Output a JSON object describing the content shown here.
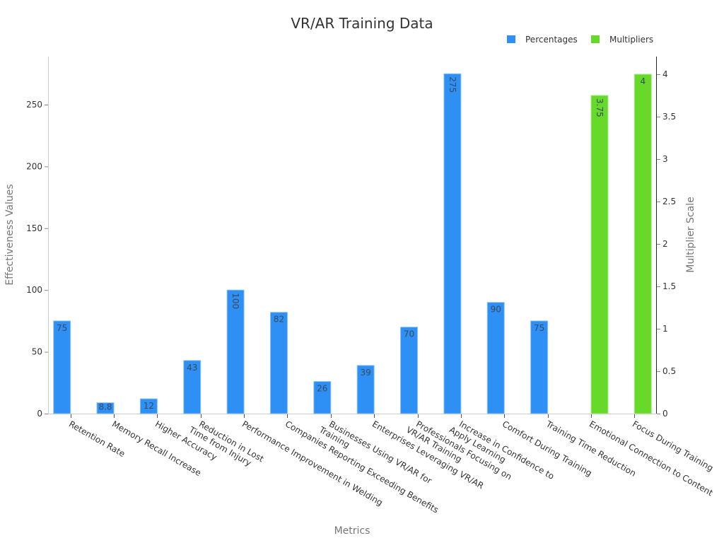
{
  "chart_data": {
    "type": "bar",
    "title": "VR/AR Training Data",
    "xlabel": "Metrics",
    "ylabel": "Effectiveness Values",
    "y2label": "Multiplier Scale",
    "ylim": [
      0,
      285
    ],
    "y2lim": [
      0,
      4.2
    ],
    "yticks": [
      0,
      50,
      100,
      150,
      200,
      250
    ],
    "y2ticks": [
      0,
      0.5,
      1,
      1.5,
      2,
      2.5,
      3,
      3.5,
      4
    ],
    "grid": false,
    "legend_position": "top-right",
    "categories": [
      [
        "Retention Rate"
      ],
      [
        "Memory Recall Increase"
      ],
      [
        "Higher Accuracy"
      ],
      [
        "Reduction in Lost",
        "Time from Injury"
      ],
      [
        "Performance Improvement in Welding"
      ],
      [
        "Companies Reporting Exceeding Benefits"
      ],
      [
        "Businesses Using VR/AR for",
        "Training"
      ],
      [
        "Enterprises Leveraging VR/AR"
      ],
      [
        "Professionals Focusing on",
        "VR/AR Training"
      ],
      [
        "Increase in Confidence to",
        "Apply Learning"
      ],
      [
        "Comfort During Training"
      ],
      [
        "Training Time Reduction"
      ],
      [
        "Emotional Connection to Content"
      ],
      [
        "Focus During Training"
      ]
    ],
    "series": [
      {
        "name": "Percentages",
        "color": "#2e8ff5",
        "axis": "left",
        "values": [
          75,
          8.8,
          12,
          43,
          100,
          82,
          26,
          39,
          70,
          275,
          90,
          75,
          null,
          null
        ],
        "labels": [
          "75",
          "8.8",
          "12",
          "43",
          "100",
          "82",
          "26",
          "39",
          "70",
          "275",
          "90",
          "75",
          "",
          ""
        ],
        "label_rotated": [
          false,
          false,
          false,
          false,
          true,
          false,
          false,
          false,
          false,
          true,
          false,
          false,
          false,
          false
        ]
      },
      {
        "name": "Multipliers",
        "color": "#66d92a",
        "axis": "right",
        "values": [
          null,
          null,
          null,
          null,
          null,
          null,
          null,
          null,
          null,
          null,
          null,
          null,
          3.75,
          4
        ],
        "labels": [
          "",
          "",
          "",
          "",
          "",
          "",
          "",
          "",
          "",
          "",
          "",
          "",
          "3.75",
          "4"
        ],
        "label_rotated": [
          false,
          false,
          false,
          false,
          false,
          false,
          false,
          false,
          false,
          false,
          false,
          false,
          true,
          false
        ]
      }
    ]
  }
}
